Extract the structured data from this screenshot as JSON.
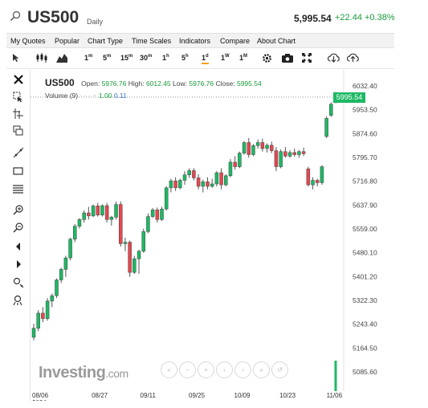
{
  "header": {
    "symbol": "US500",
    "period": "Daily",
    "price": "5,995.54",
    "change": "+22.44 +0.38%"
  },
  "menu": [
    "My Quotes",
    "Popular",
    "Chart Type",
    "Time Scales",
    "Indicators",
    "Compare",
    "About Chart"
  ],
  "toolbar": {
    "timeframes": [
      {
        "n": "1",
        "u": "m"
      },
      {
        "n": "5",
        "u": "m"
      },
      {
        "n": "15",
        "u": "m"
      },
      {
        "n": "30",
        "u": "m"
      },
      {
        "n": "1",
        "u": "h"
      },
      {
        "n": "5",
        "u": "h"
      },
      {
        "n": "1",
        "u": "d"
      },
      {
        "n": "1",
        "u": "W"
      },
      {
        "n": "1",
        "u": "M"
      }
    ],
    "selected_timeframe": "1d"
  },
  "legend": {
    "symbol": "US500",
    "open_label": "Open:",
    "open": "5976.76",
    "high_label": "High:",
    "high": "6012.45",
    "low_label": "Low:",
    "low": "5976.76",
    "close_label": "Close:",
    "close": "5995.54",
    "volume_label": "Volume (9)",
    "volume_a": "1.00",
    "volume_b": "0.11"
  },
  "logo": {
    "name": "Investing",
    "domain": ".com"
  },
  "last_price_badge": "5995.54",
  "colors": {
    "up": "#1db964",
    "down": "#e6474f",
    "accent": "#f4a020"
  },
  "chart_data": {
    "type": "candlestick",
    "x_tick_labels": [
      "08/06\n2024",
      "08/27",
      "09/11",
      "09/25",
      "10/09",
      "10/23",
      "11/06"
    ],
    "y_tick_labels": [
      "6032.40",
      "5953.50",
      "5874.60",
      "5795.70",
      "5716.80",
      "5637.90",
      "5559.00",
      "5480.10",
      "5401.20",
      "5322.30",
      "5243.40",
      "5164.50",
      "5085.60"
    ],
    "ylim": [
      5085.6,
      6032.4
    ],
    "last_price": 5995.54,
    "candles": [
      [
        5200,
        5245,
        5190,
        5230
      ],
      [
        5230,
        5290,
        5220,
        5280
      ],
      [
        5280,
        5300,
        5250,
        5262
      ],
      [
        5262,
        5330,
        5255,
        5320
      ],
      [
        5320,
        5345,
        5300,
        5338
      ],
      [
        5338,
        5395,
        5330,
        5390
      ],
      [
        5390,
        5430,
        5380,
        5425
      ],
      [
        5425,
        5470,
        5400,
        5463
      ],
      [
        5463,
        5530,
        5455,
        5525
      ],
      [
        5525,
        5575,
        5515,
        5568
      ],
      [
        5568,
        5595,
        5560,
        5590
      ],
      [
        5590,
        5620,
        5580,
        5612
      ],
      [
        5612,
        5632,
        5590,
        5602
      ],
      [
        5602,
        5640,
        5598,
        5635
      ],
      [
        5635,
        5645,
        5600,
        5605
      ],
      [
        5605,
        5640,
        5600,
        5636
      ],
      [
        5636,
        5645,
        5580,
        5590
      ],
      [
        5590,
        5602,
        5570,
        5598
      ],
      [
        5598,
        5650,
        5590,
        5640
      ],
      [
        5640,
        5650,
        5500,
        5510
      ],
      [
        5510,
        5530,
        5485,
        5515
      ],
      [
        5515,
        5520,
        5400,
        5415
      ],
      [
        5415,
        5470,
        5410,
        5460
      ],
      [
        5460,
        5490,
        5410,
        5485
      ],
      [
        5485,
        5560,
        5480,
        5550
      ],
      [
        5550,
        5610,
        5545,
        5600
      ],
      [
        5600,
        5628,
        5595,
        5622
      ],
      [
        5622,
        5630,
        5580,
        5590
      ],
      [
        5590,
        5632,
        5585,
        5625
      ],
      [
        5625,
        5700,
        5620,
        5695
      ],
      [
        5695,
        5725,
        5680,
        5718
      ],
      [
        5718,
        5730,
        5685,
        5695
      ],
      [
        5695,
        5725,
        5690,
        5720
      ],
      [
        5720,
        5750,
        5705,
        5738
      ],
      [
        5738,
        5760,
        5728,
        5752
      ],
      [
        5752,
        5760,
        5720,
        5728
      ],
      [
        5728,
        5740,
        5690,
        5700
      ],
      [
        5700,
        5722,
        5680,
        5715
      ],
      [
        5715,
        5730,
        5690,
        5700
      ],
      [
        5700,
        5725,
        5695,
        5708
      ],
      [
        5708,
        5750,
        5700,
        5745
      ],
      [
        5745,
        5760,
        5690,
        5705
      ],
      [
        5705,
        5740,
        5700,
        5735
      ],
      [
        5735,
        5790,
        5730,
        5780
      ],
      [
        5780,
        5800,
        5755,
        5765
      ],
      [
        5765,
        5815,
        5760,
        5810
      ],
      [
        5810,
        5850,
        5805,
        5845
      ],
      [
        5845,
        5860,
        5795,
        5805
      ],
      [
        5805,
        5840,
        5800,
        5835
      ],
      [
        5835,
        5855,
        5825,
        5845
      ],
      [
        5845,
        5858,
        5815,
        5825
      ],
      [
        5825,
        5842,
        5812,
        5836
      ],
      [
        5836,
        5848,
        5810,
        5818
      ],
      [
        5818,
        5830,
        5750,
        5765
      ],
      [
        5765,
        5822,
        5760,
        5815
      ],
      [
        5815,
        5830,
        5795,
        5800
      ],
      [
        5800,
        5820,
        5795,
        5812
      ],
      [
        5812,
        5825,
        5798,
        5805
      ],
      [
        5805,
        5820,
        5795,
        5815
      ],
      [
        5815,
        5828,
        5800,
        5808
      ],
      [
        5758,
        5765,
        5700,
        5705
      ],
      [
        5705,
        5730,
        5690,
        5720
      ],
      [
        5720,
        5725,
        5700,
        5712
      ],
      [
        5712,
        5770,
        5705,
        5765
      ],
      [
        5865,
        5932,
        5860,
        5925
      ],
      [
        5935,
        5978,
        5930,
        5972
      ],
      [
        5976.76,
        6012.45,
        5976.76,
        5995.54
      ]
    ]
  }
}
